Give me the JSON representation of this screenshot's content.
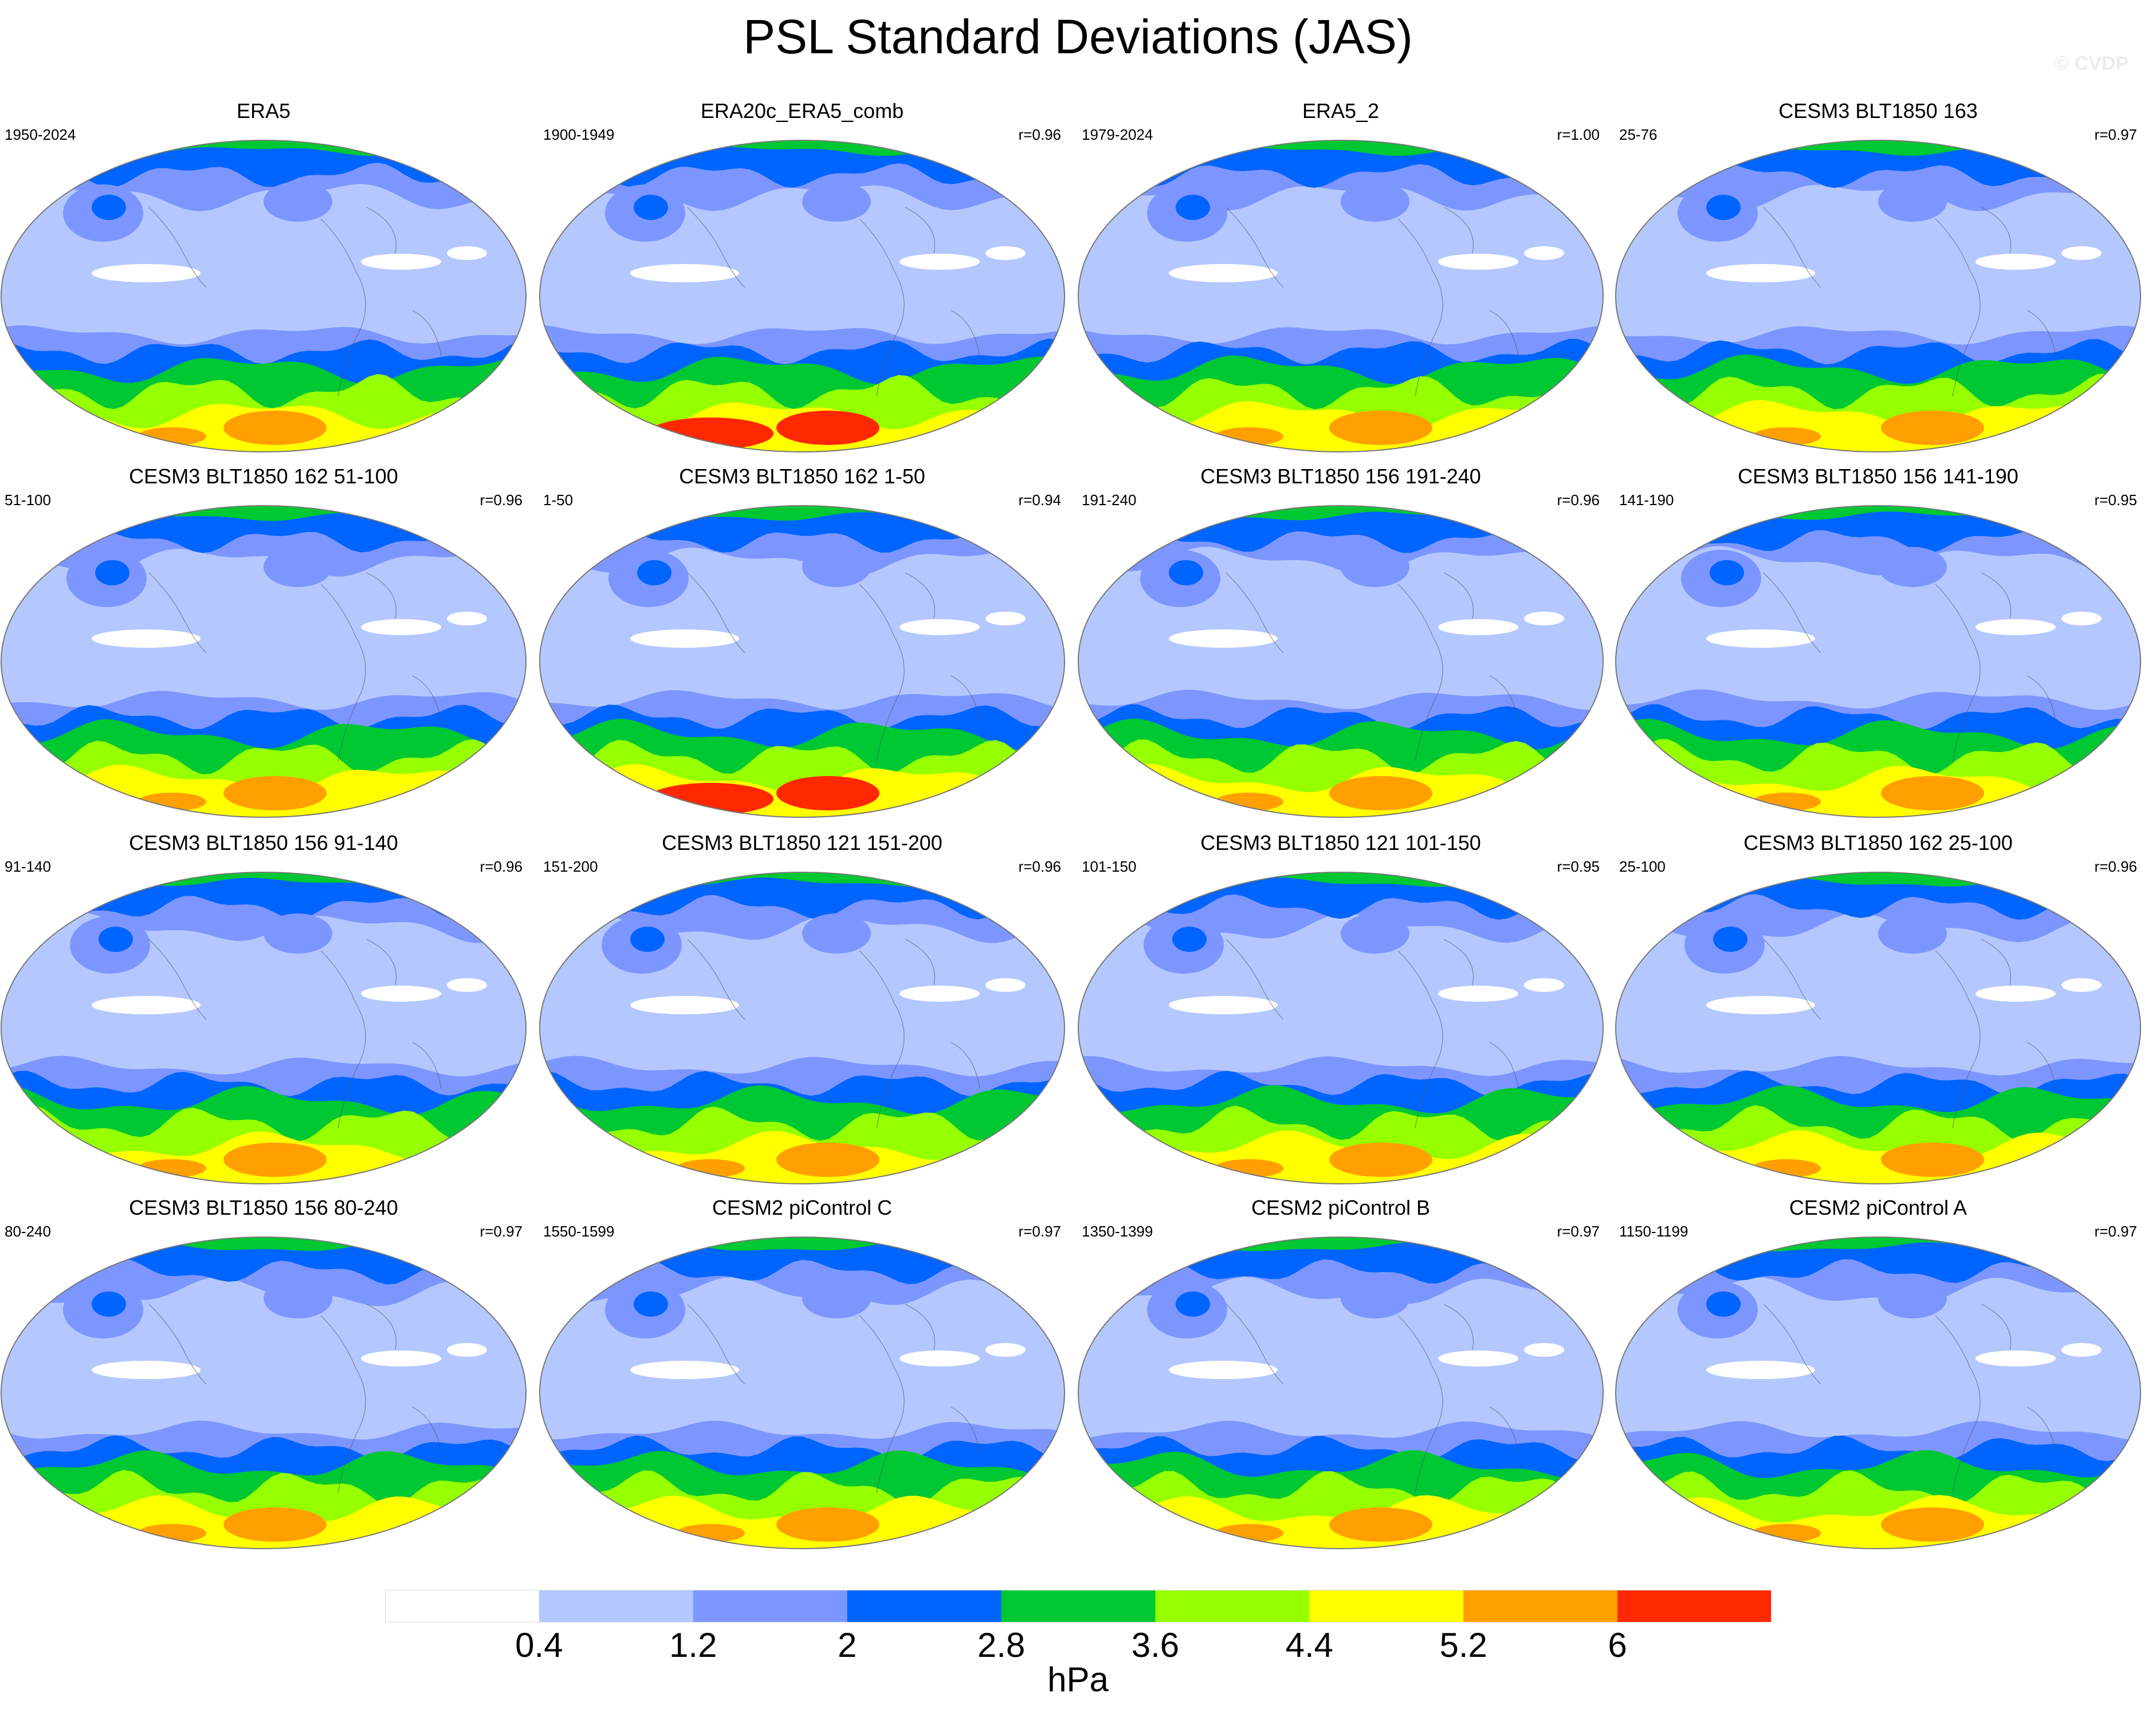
{
  "figure": {
    "title": "PSL Standard Deviations (JAS)",
    "credit": "© CVDP"
  },
  "chart_data": {
    "type": "heatmap",
    "projection": "global map panels",
    "layout": {
      "rows": 4,
      "columns": 4
    },
    "panels": [
      {
        "title": "ERA5",
        "years": "1950-2024",
        "pattern_correlation": ""
      },
      {
        "title": "ERA20c_ERA5_comb",
        "years": "1900-1949",
        "pattern_correlation": "r=0.96"
      },
      {
        "title": "ERA5_2",
        "years": "1979-2024",
        "pattern_correlation": "r=1.00"
      },
      {
        "title": "CESM3 BLT1850 163",
        "years": "25-76",
        "pattern_correlation": "r=0.97"
      },
      {
        "title": "CESM3 BLT1850 162 51-100",
        "years": "51-100",
        "pattern_correlation": "r=0.96"
      },
      {
        "title": "CESM3 BLT1850 162 1-50",
        "years": "1-50",
        "pattern_correlation": "r=0.94"
      },
      {
        "title": "CESM3 BLT1850 156 191-240",
        "years": "191-240",
        "pattern_correlation": "r=0.96"
      },
      {
        "title": "CESM3 BLT1850 156 141-190",
        "years": "141-190",
        "pattern_correlation": "r=0.95"
      },
      {
        "title": "CESM3 BLT1850 156 91-140",
        "years": "91-140",
        "pattern_correlation": "r=0.96"
      },
      {
        "title": "CESM3 BLT1850 121 151-200",
        "years": "151-200",
        "pattern_correlation": "r=0.96"
      },
      {
        "title": "CESM3 BLT1850 121 101-150",
        "years": "101-150",
        "pattern_correlation": "r=0.95"
      },
      {
        "title": "CESM3 BLT1850 162 25-100",
        "years": "25-100",
        "pattern_correlation": "r=0.96"
      },
      {
        "title": "CESM3 BLT1850 156 80-240",
        "years": "80-240",
        "pattern_correlation": "r=0.97"
      },
      {
        "title": "CESM2 piControl C",
        "years": "1550-1599",
        "pattern_correlation": "r=0.97"
      },
      {
        "title": "CESM2 piControl B",
        "years": "1350-1399",
        "pattern_correlation": "r=0.97"
      },
      {
        "title": "CESM2 piControl A",
        "years": "1150-1199",
        "pattern_correlation": "r=0.97"
      }
    ],
    "colorbar": {
      "levels": [
        0.4,
        1.2,
        2,
        2.8,
        3.6,
        4.4,
        5.2,
        6
      ],
      "tick_labels": [
        "0.4",
        "1.2",
        "2",
        "2.8",
        "3.6",
        "4.4",
        "5.2",
        "6"
      ],
      "colors": [
        "#ffffff",
        "#b4c8ff",
        "#7d96ff",
        "#0064ff",
        "#00c832",
        "#96ff00",
        "#ffff00",
        "#ffa000",
        "#ff2800"
      ],
      "units": "hPa"
    }
  }
}
